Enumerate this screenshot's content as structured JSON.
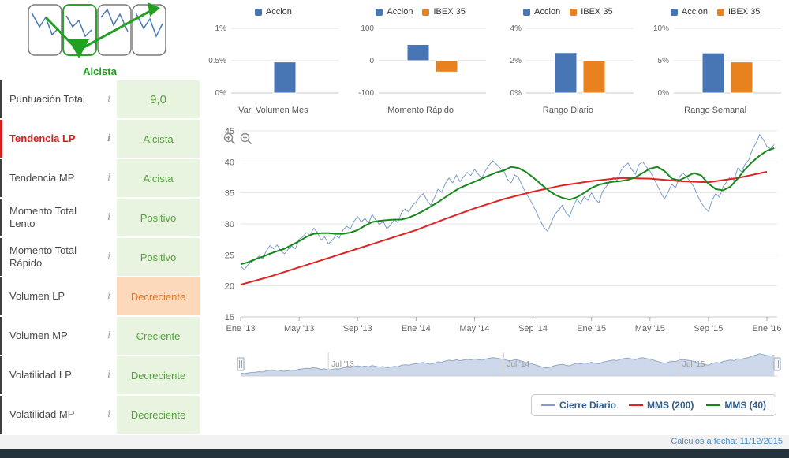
{
  "sidebar": {
    "trend_label": "Alcista",
    "info_icon": "i",
    "rows": [
      {
        "label": "Puntuación Total",
        "value": "9,0",
        "value_state": "good",
        "label_state": "normal",
        "is_score": true
      },
      {
        "label": "Tendencia LP",
        "value": "Alcista",
        "value_state": "good",
        "label_state": "alert",
        "is_score": false
      },
      {
        "label": "Tendencia MP",
        "value": "Alcista",
        "value_state": "good",
        "label_state": "normal",
        "is_score": false
      },
      {
        "label": "Momento Total Lento",
        "value": "Positivo",
        "value_state": "good",
        "label_state": "normal",
        "is_score": false
      },
      {
        "label": "Momento Total Rápido",
        "value": "Positivo",
        "value_state": "good",
        "label_state": "normal",
        "is_score": false
      },
      {
        "label": "Volumen LP",
        "value": "Decreciente",
        "value_state": "bad",
        "label_state": "normal",
        "is_score": false
      },
      {
        "label": "Volumen MP",
        "value": "Creciente",
        "value_state": "good",
        "label_state": "normal",
        "is_score": false
      },
      {
        "label": "Volatilidad LP",
        "value": "Decreciente",
        "value_state": "good",
        "label_state": "normal",
        "is_score": false
      },
      {
        "label": "Volatilidad MP",
        "value": "Decreciente",
        "value_state": "good",
        "label_state": "normal",
        "is_score": false
      }
    ]
  },
  "footer": {
    "text": "Cálculos a fecha: 11/12/2015"
  },
  "colors": {
    "accent_green": "#1f9a1f",
    "good_text": "#56a041",
    "good_bg": "#e9f4e0",
    "bad_text": "#e2762a",
    "bad_bg": "#fcd9bb",
    "alert_red": "#d42020",
    "bar_blue": "#4876b4",
    "bar_orange": "#e8821e",
    "line_blue": "#7d9ec8",
    "line_red": "#e02424",
    "line_green": "#17881b",
    "navigator_fill": "#cdd9eb",
    "navigator_stroke": "#93a9c9",
    "footer_text": "#4a90c9",
    "bottom_bar": "#24333c"
  },
  "chart_data": [
    {
      "type": "bar",
      "title": "Var. Volumen Mes",
      "ylim": [
        0,
        1
      ],
      "yticks": [
        {
          "v": 1,
          "label": "1%"
        },
        {
          "v": 0.5,
          "label": "0.5%"
        },
        {
          "v": 0,
          "label": "0%"
        }
      ],
      "series": [
        {
          "name": "Accion",
          "value": 0.48,
          "color": "#4876b4"
        }
      ]
    },
    {
      "type": "bar",
      "title": "Momento Rápido",
      "ylim": [
        -100,
        100
      ],
      "yticks": [
        {
          "v": 100,
          "label": "100"
        },
        {
          "v": 0,
          "label": "0"
        },
        {
          "v": -100,
          "label": "-100"
        }
      ],
      "series": [
        {
          "name": "Accion",
          "value": 50,
          "color": "#4876b4"
        },
        {
          "name": "IBEX 35",
          "value": -35,
          "color": "#e8821e"
        }
      ]
    },
    {
      "type": "bar",
      "title": "Rango Diario",
      "ylim": [
        0,
        4
      ],
      "yticks": [
        {
          "v": 4,
          "label": "4%"
        },
        {
          "v": 2,
          "label": "2%"
        },
        {
          "v": 0,
          "label": "0%"
        }
      ],
      "series": [
        {
          "name": "Accion",
          "value": 2.5,
          "color": "#4876b4"
        },
        {
          "name": "IBEX 35",
          "value": 2.0,
          "color": "#e8821e"
        }
      ]
    },
    {
      "type": "bar",
      "title": "Rango Semanal",
      "ylim": [
        0,
        10
      ],
      "yticks": [
        {
          "v": 10,
          "label": "10%"
        },
        {
          "v": 5,
          "label": "5%"
        },
        {
          "v": 0,
          "label": "0%"
        }
      ],
      "series": [
        {
          "name": "Accion",
          "value": 6.2,
          "color": "#4876b4"
        },
        {
          "name": "IBEX 35",
          "value": 4.8,
          "color": "#e8821e"
        }
      ]
    },
    {
      "type": "line",
      "title": "Cotización diaria con medias móviles",
      "xlim": [
        0,
        36.7
      ],
      "ylim": [
        15,
        45
      ],
      "yticks": [
        45,
        40,
        35,
        30,
        25,
        20,
        15
      ],
      "xticks": [
        {
          "m": 0,
          "label": "Ene '13"
        },
        {
          "m": 4,
          "label": "May '13"
        },
        {
          "m": 8,
          "label": "Sep '13"
        },
        {
          "m": 12,
          "label": "Ene '14"
        },
        {
          "m": 16,
          "label": "May '14"
        },
        {
          "m": 20,
          "label": "Sep '14"
        },
        {
          "m": 24,
          "label": "Ene '15"
        },
        {
          "m": 28,
          "label": "May '15"
        },
        {
          "m": 32,
          "label": "Sep '15"
        },
        {
          "m": 36,
          "label": "Ene '16"
        }
      ],
      "series": [
        {
          "name": "Cierre Diario",
          "color": "#7d9ec8",
          "width": 1,
          "x0": 0,
          "dx": 0.25,
          "values": [
            23.2,
            22.6,
            23.4,
            23.9,
            24.2,
            24.8,
            24.4,
            25.6,
            26.5,
            26.0,
            26.6,
            25.6,
            25.2,
            25.9,
            26.4,
            26.0,
            27.5,
            27.9,
            28.6,
            28.2,
            29.3,
            28.6,
            27.4,
            27.9,
            26.8,
            27.3,
            28.1,
            27.7,
            29.0,
            29.6,
            29.2,
            30.4,
            31.2,
            30.3,
            30.9,
            30.1,
            31.5,
            30.6,
            29.9,
            30.4,
            29.2,
            29.8,
            30.7,
            30.2,
            31.8,
            32.4,
            31.9,
            33.0,
            33.5,
            34.4,
            34.9,
            33.8,
            33.0,
            34.2,
            35.6,
            35.1,
            36.5,
            37.4,
            36.6,
            37.9,
            36.8,
            37.6,
            38.3,
            37.8,
            38.8,
            38.0,
            37.4,
            38.6,
            39.5,
            40.2,
            39.6,
            39.0,
            38.5,
            37.2,
            36.6,
            37.9,
            37.5,
            36.2,
            35.0,
            34.1,
            33.0,
            31.8,
            30.5,
            29.4,
            28.8,
            30.2,
            31.6,
            32.2,
            33.0,
            31.8,
            31.2,
            32.8,
            34.0,
            33.2,
            34.4,
            33.8,
            35.0,
            34.0,
            33.4,
            35.2,
            36.0,
            36.8,
            37.5,
            37.0,
            38.5,
            39.3,
            39.8,
            38.8,
            38.0,
            39.6,
            40.0,
            39.2,
            38.5,
            37.4,
            36.2,
            35.0,
            34.0,
            35.2,
            36.4,
            35.8,
            37.5,
            38.2,
            37.6,
            36.8,
            36.0,
            34.6,
            33.4,
            32.6,
            32.0,
            33.8,
            34.9,
            34.3,
            36.0,
            36.8,
            37.6,
            37.0,
            39.0,
            38.4,
            39.6,
            40.3,
            42.0,
            43.0,
            44.4,
            43.6,
            42.5,
            42.1,
            42.8
          ]
        },
        {
          "name": "MMS (200)",
          "color": "#e02424",
          "width": 2,
          "x0": 0,
          "dx": 2,
          "values": [
            20.2,
            21.5,
            23.0,
            24.5,
            26.0,
            27.5,
            29.0,
            30.8,
            32.5,
            34.0,
            35.2,
            36.2,
            36.9,
            37.4,
            37.3,
            36.9,
            36.7,
            37.4,
            38.4
          ]
        },
        {
          "name": "MMS (40)",
          "color": "#17881b",
          "width": 2,
          "x0": 0,
          "dx": 0.5,
          "values": [
            23.5,
            23.8,
            24.3,
            24.7,
            25.2,
            25.6,
            26.0,
            26.6,
            27.2,
            27.9,
            28.4,
            28.5,
            28.5,
            28.4,
            28.4,
            28.6,
            29.0,
            29.7,
            30.3,
            30.5,
            30.6,
            30.7,
            30.7,
            31.0,
            31.5,
            32.1,
            32.8,
            33.5,
            34.3,
            35.1,
            35.8,
            36.3,
            36.8,
            37.3,
            37.8,
            38.3,
            38.6,
            39.2,
            39.0,
            38.4,
            37.5,
            36.5,
            35.5,
            34.7,
            34.2,
            33.9,
            34.3,
            35.0,
            35.8,
            36.3,
            36.6,
            36.8,
            36.9,
            37.1,
            37.5,
            38.2,
            38.9,
            39.2,
            38.5,
            37.3,
            37.0,
            37.6,
            38.2,
            37.8,
            36.5,
            35.6,
            35.4,
            36.0,
            37.3,
            38.8,
            40.0,
            41.0,
            41.8,
            42.2
          ]
        }
      ],
      "navigator": {
        "labels": [
          {
            "m": 6,
            "label": "Jul '13"
          },
          {
            "m": 18,
            "label": "Jul '14"
          },
          {
            "m": 30,
            "label": "Jul '15"
          }
        ]
      }
    }
  ]
}
